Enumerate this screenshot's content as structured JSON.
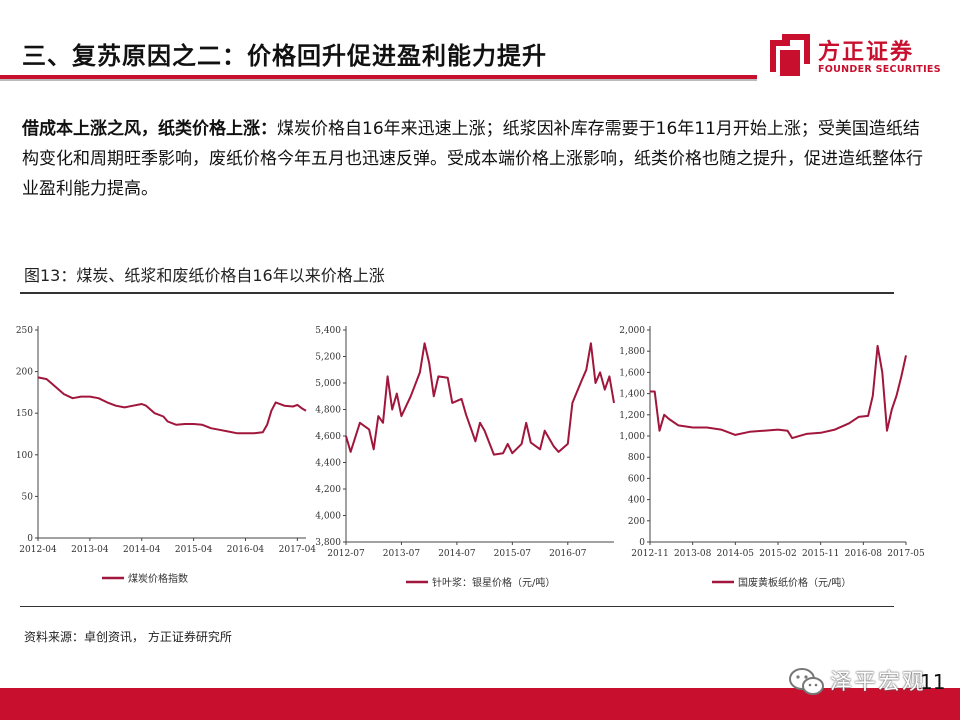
{
  "header": {
    "title": "三、复苏原因之二：价格回升促进盈利能力提升",
    "logo_cn": "方正证券",
    "logo_en": "FOUNDER SECURITIES"
  },
  "intro": {
    "bold": "借成本上涨之风，纸类价格上涨：",
    "text": "煤炭价格自16年来迅速上涨；纸浆因补库存需要于16年11月开始上涨；受美国造纸结构变化和周期旺季影响，废纸价格今年五月也迅速反弹。受成本端价格上涨影响，纸类价格也随之提升，促进造纸整体行业盈利能力提高。"
  },
  "figure": {
    "caption": "图13：煤炭、纸浆和废纸价格自16年以来价格上涨",
    "source": "资料来源：卓创资讯， 方正证券研究所"
  },
  "footer": {
    "watermark": "泽平宏观",
    "page_number": "11"
  },
  "colors": {
    "accent": "#c8102e",
    "series": "#a0163c"
  },
  "chart_data": [
    {
      "type": "line",
      "series": [
        {
          "name": "煤炭价格指数",
          "points": [
            [
              "2012-04",
              193
            ],
            [
              "2012-06",
              191
            ],
            [
              "2012-08",
              182
            ],
            [
              "2012-10",
              173
            ],
            [
              "2012-12",
              168
            ],
            [
              "2013-02",
              170
            ],
            [
              "2013-04",
              170
            ],
            [
              "2013-06",
              168
            ],
            [
              "2013-08",
              163
            ],
            [
              "2013-10",
              159
            ],
            [
              "2013-12",
              157
            ],
            [
              "2014-02",
              159
            ],
            [
              "2014-04",
              161
            ],
            [
              "2014-05",
              159
            ],
            [
              "2014-07",
              150
            ],
            [
              "2014-09",
              146
            ],
            [
              "2014-10",
              140
            ],
            [
              "2014-12",
              136
            ],
            [
              "2015-02",
              137
            ],
            [
              "2015-04",
              137
            ],
            [
              "2015-06",
              136
            ],
            [
              "2015-08",
              132
            ],
            [
              "2015-10",
              130
            ],
            [
              "2015-12",
              128
            ],
            [
              "2016-02",
              126
            ],
            [
              "2016-04",
              126
            ],
            [
              "2016-06",
              126
            ],
            [
              "2016-08",
              127
            ],
            [
              "2016-09",
              136
            ],
            [
              "2016-10",
              153
            ],
            [
              "2016-11",
              163
            ],
            [
              "2017-01",
              159
            ],
            [
              "2017-03",
              158
            ],
            [
              "2017-04",
              160
            ],
            [
              "2017-05",
              156
            ],
            [
              "2017-06",
              153
            ]
          ]
        }
      ],
      "x_ticks": [
        "2012-04",
        "2013-04",
        "2014-04",
        "2015-04",
        "2016-04",
        "2017-04"
      ],
      "ylim": [
        0,
        250
      ],
      "y_ticks": [
        0,
        50,
        100,
        150,
        200,
        250
      ],
      "legend": "bottom"
    },
    {
      "type": "line",
      "series": [
        {
          "name": "针叶浆：银星价格（元/吨）",
          "points": [
            [
              "2012-07",
              4600
            ],
            [
              "2012-08",
              4480
            ],
            [
              "2012-10",
              4700
            ],
            [
              "2012-12",
              4650
            ],
            [
              "2013-01",
              4500
            ],
            [
              "2013-02",
              4750
            ],
            [
              "2013-03",
              4700
            ],
            [
              "2013-04",
              5050
            ],
            [
              "2013-05",
              4800
            ],
            [
              "2013-06",
              4920
            ],
            [
              "2013-07",
              4750
            ],
            [
              "2013-09",
              4900
            ],
            [
              "2013-11",
              5080
            ],
            [
              "2013-12",
              5300
            ],
            [
              "2014-01",
              5150
            ],
            [
              "2014-02",
              4900
            ],
            [
              "2014-03",
              5050
            ],
            [
              "2014-05",
              5040
            ],
            [
              "2014-06",
              4850
            ],
            [
              "2014-08",
              4880
            ],
            [
              "2014-09",
              4760
            ],
            [
              "2014-10",
              4660
            ],
            [
              "2014-11",
              4560
            ],
            [
              "2014-12",
              4700
            ],
            [
              "2015-01",
              4640
            ],
            [
              "2015-03",
              4460
            ],
            [
              "2015-05",
              4470
            ],
            [
              "2015-06",
              4540
            ],
            [
              "2015-07",
              4470
            ],
            [
              "2015-09",
              4540
            ],
            [
              "2015-10",
              4700
            ],
            [
              "2015-11",
              4550
            ],
            [
              "2016-01",
              4500
            ],
            [
              "2016-02",
              4640
            ],
            [
              "2016-04",
              4520
            ],
            [
              "2016-05",
              4480
            ],
            [
              "2016-07",
              4540
            ],
            [
              "2016-08",
              4850
            ],
            [
              "2016-10",
              5020
            ],
            [
              "2016-11",
              5100
            ],
            [
              "2016-12",
              5300
            ],
            [
              "2017-01",
              5000
            ],
            [
              "2017-02",
              5080
            ],
            [
              "2017-03",
              4950
            ],
            [
              "2017-04",
              5050
            ],
            [
              "2017-05",
              4850
            ]
          ]
        }
      ],
      "x_ticks": [
        "2012-07",
        "2013-07",
        "2014-07",
        "2015-07",
        "2016-07"
      ],
      "ylim": [
        3800,
        5400
      ],
      "y_ticks": [
        3800,
        4000,
        4200,
        4400,
        4600,
        4800,
        5000,
        5200,
        5400
      ],
      "legend": "bottom"
    },
    {
      "type": "line",
      "series": [
        {
          "name": "国废黄板纸价格（元/吨）",
          "points": [
            [
              "2012-11",
              1420
            ],
            [
              "2012-12",
              1420
            ],
            [
              "2013-01",
              1050
            ],
            [
              "2013-02",
              1200
            ],
            [
              "2013-03",
              1160
            ],
            [
              "2013-05",
              1100
            ],
            [
              "2013-08",
              1080
            ],
            [
              "2013-11",
              1080
            ],
            [
              "2014-02",
              1060
            ],
            [
              "2014-05",
              1010
            ],
            [
              "2014-08",
              1040
            ],
            [
              "2014-11",
              1050
            ],
            [
              "2015-02",
              1060
            ],
            [
              "2015-04",
              1050
            ],
            [
              "2015-05",
              980
            ],
            [
              "2015-08",
              1020
            ],
            [
              "2015-11",
              1030
            ],
            [
              "2016-02",
              1060
            ],
            [
              "2016-05",
              1120
            ],
            [
              "2016-07",
              1180
            ],
            [
              "2016-09",
              1190
            ],
            [
              "2016-10",
              1380
            ],
            [
              "2016-11",
              1850
            ],
            [
              "2016-12",
              1600
            ],
            [
              "2017-01",
              1050
            ],
            [
              "2017-02",
              1250
            ],
            [
              "2017-03",
              1380
            ],
            [
              "2017-04",
              1560
            ],
            [
              "2017-05",
              1760
            ]
          ]
        }
      ],
      "x_ticks": [
        "2012-11",
        "2013-08",
        "2014-05",
        "2015-02",
        "2015-11",
        "2016-08",
        "2017-05"
      ],
      "ylim": [
        0,
        2000
      ],
      "y_ticks": [
        0,
        200,
        400,
        600,
        800,
        1000,
        1200,
        1400,
        1600,
        1800,
        2000
      ],
      "legend": "bottom"
    }
  ]
}
